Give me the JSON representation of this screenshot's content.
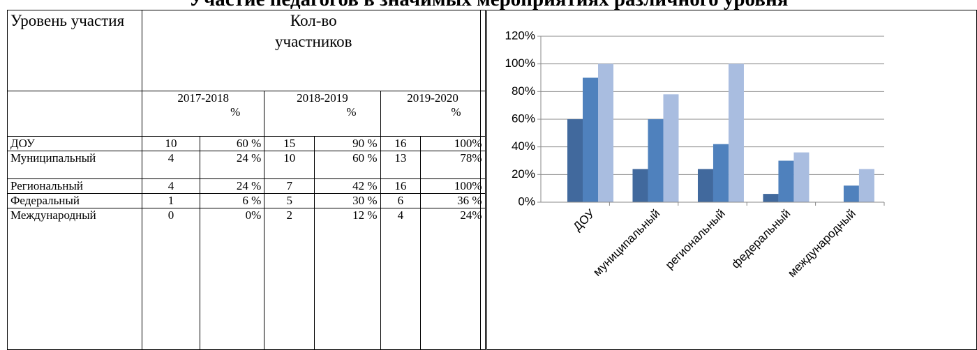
{
  "title": "Участие педагогов в значимых мероприятиях различного уровня",
  "table": {
    "header": [
      "Уровень участия",
      "Кол-во участников"
    ],
    "years": [
      {
        "label": "2017-2018",
        "unit": "%"
      },
      {
        "label": "2018-2019",
        "unit": "%"
      },
      {
        "label": "2019-2020",
        "unit": "%"
      }
    ],
    "rows": [
      [
        "ДОУ",
        "10",
        "60 %",
        "15",
        "90 %",
        "16",
        "100%"
      ],
      [
        "Муниципальный",
        "4",
        "24 %",
        "10",
        "60 %",
        "13",
        "78%"
      ],
      [
        "Региональный",
        "4",
        "24 %",
        "7",
        "42 %",
        "16",
        "100%"
      ],
      [
        "Федеральный",
        "1",
        "6 %",
        "5",
        "30 %",
        "6",
        "36 %"
      ],
      [
        "Международный",
        "0",
        "0%",
        "2",
        "12 %",
        "4",
        "24%"
      ]
    ]
  },
  "chart_data": {
    "type": "bar",
    "categories": [
      "ДОУ",
      "муниципальный",
      "региональный",
      "федеральный",
      "международный"
    ],
    "series": [
      {
        "color": "#41699d",
        "values": [
          60,
          24,
          24,
          6,
          0
        ]
      },
      {
        "color": "#4f81bd",
        "values": [
          90,
          60,
          42,
          30,
          12
        ]
      },
      {
        "color": "#a9bde0",
        "values": [
          100,
          78,
          100,
          36,
          24
        ]
      }
    ],
    "ylim": [
      0,
      120
    ],
    "yticks": [
      {
        "value": 0,
        "label": "0%"
      },
      {
        "value": 20,
        "label": "20%"
      },
      {
        "value": 40,
        "label": "40%"
      },
      {
        "value": 60,
        "label": "60%"
      },
      {
        "value": 80,
        "label": "80%"
      },
      {
        "value": 100,
        "label": "100%"
      },
      {
        "value": 120,
        "label": "120%"
      }
    ],
    "grid": true
  }
}
